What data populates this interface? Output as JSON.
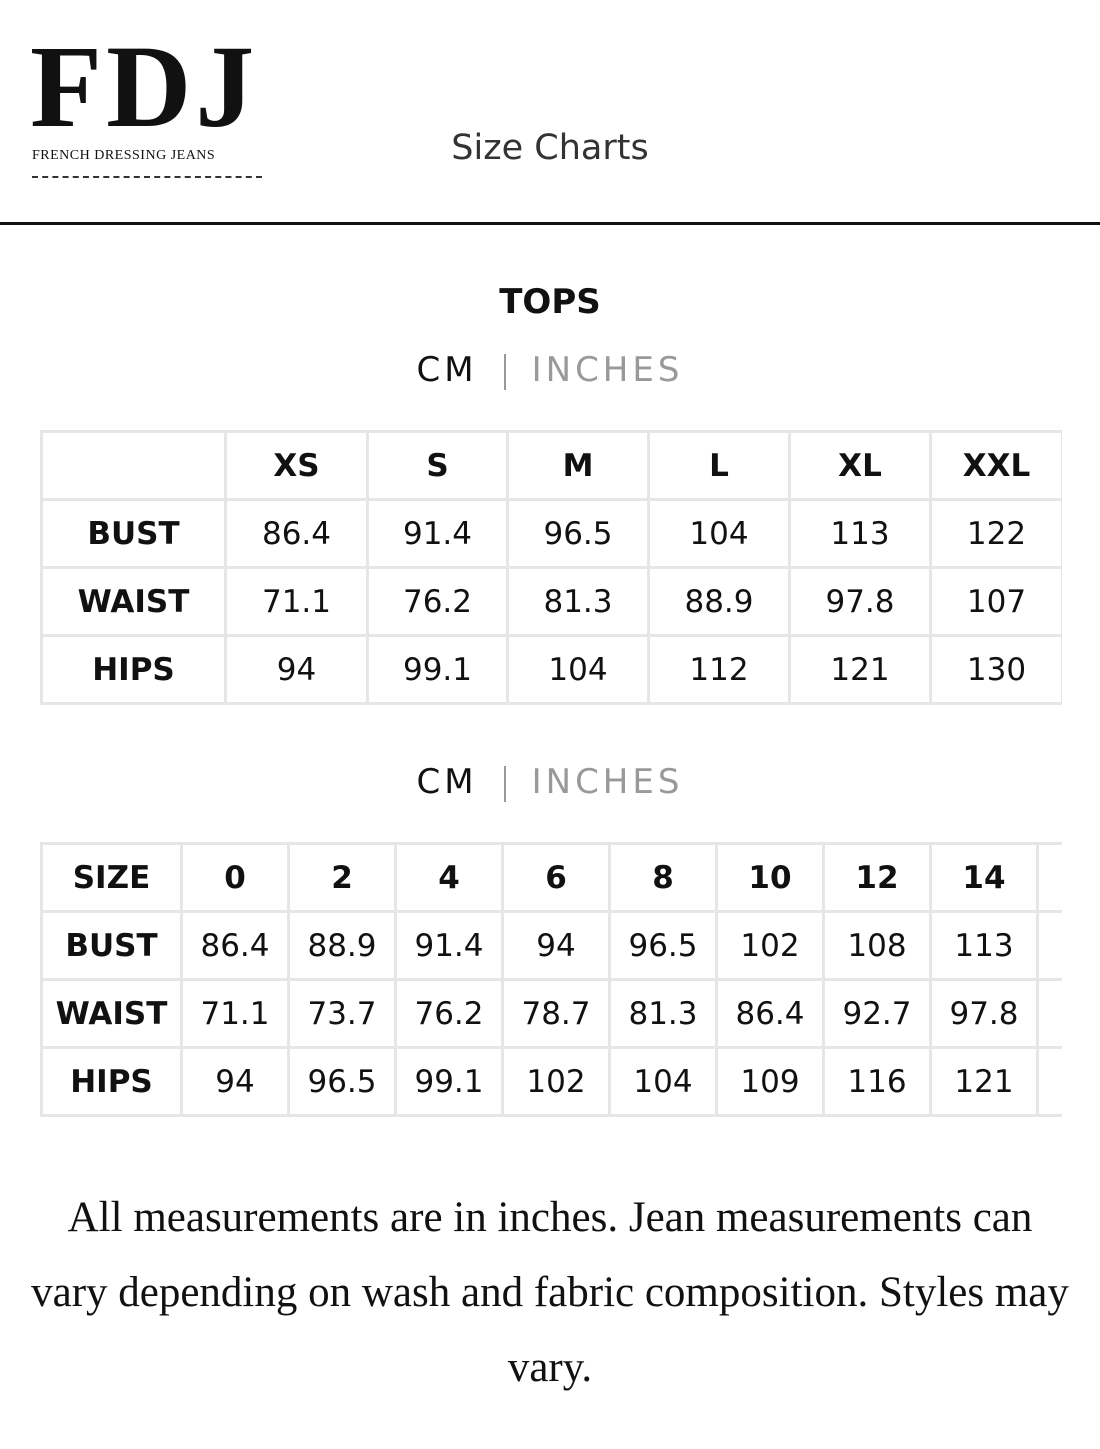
{
  "header": {
    "logo": "FDJ",
    "tagline": "FRENCH DRESSING JEANS",
    "title": "Size Charts"
  },
  "section_title": "TOPS",
  "tables": [
    {
      "units": [
        "CM",
        "INCHES"
      ],
      "corner": null,
      "columns": [
        "XS",
        "S",
        "M",
        "L",
        "XL",
        "XXL"
      ],
      "rows": [
        {
          "label": "BUST",
          "values": [
            86.4,
            91.4,
            96.5,
            104,
            113,
            122
          ]
        },
        {
          "label": "WAIST",
          "values": [
            71.1,
            76.2,
            81.3,
            88.9,
            97.8,
            107
          ]
        },
        {
          "label": "HIPS",
          "values": [
            94,
            99.1,
            104,
            112,
            121,
            130
          ]
        }
      ]
    },
    {
      "units": [
        "CM",
        "INCHES"
      ],
      "corner": "SIZE",
      "columns": [
        "0",
        "2",
        "4",
        "6",
        "8",
        "10",
        "12",
        "14"
      ],
      "rows": [
        {
          "label": "BUST",
          "values": [
            86.4,
            88.9,
            91.4,
            94,
            96.5,
            102,
            108,
            113
          ]
        },
        {
          "label": "WAIST",
          "values": [
            71.1,
            73.7,
            76.2,
            78.7,
            81.3,
            86.4,
            92.7,
            97.8
          ]
        },
        {
          "label": "HIPS",
          "values": [
            94,
            96.5,
            99.1,
            102,
            104,
            109,
            116,
            121
          ]
        }
      ]
    }
  ],
  "note": "All measurements are in inches. Jean measurements can vary depending on wash and fabric composition. Styles may vary."
}
